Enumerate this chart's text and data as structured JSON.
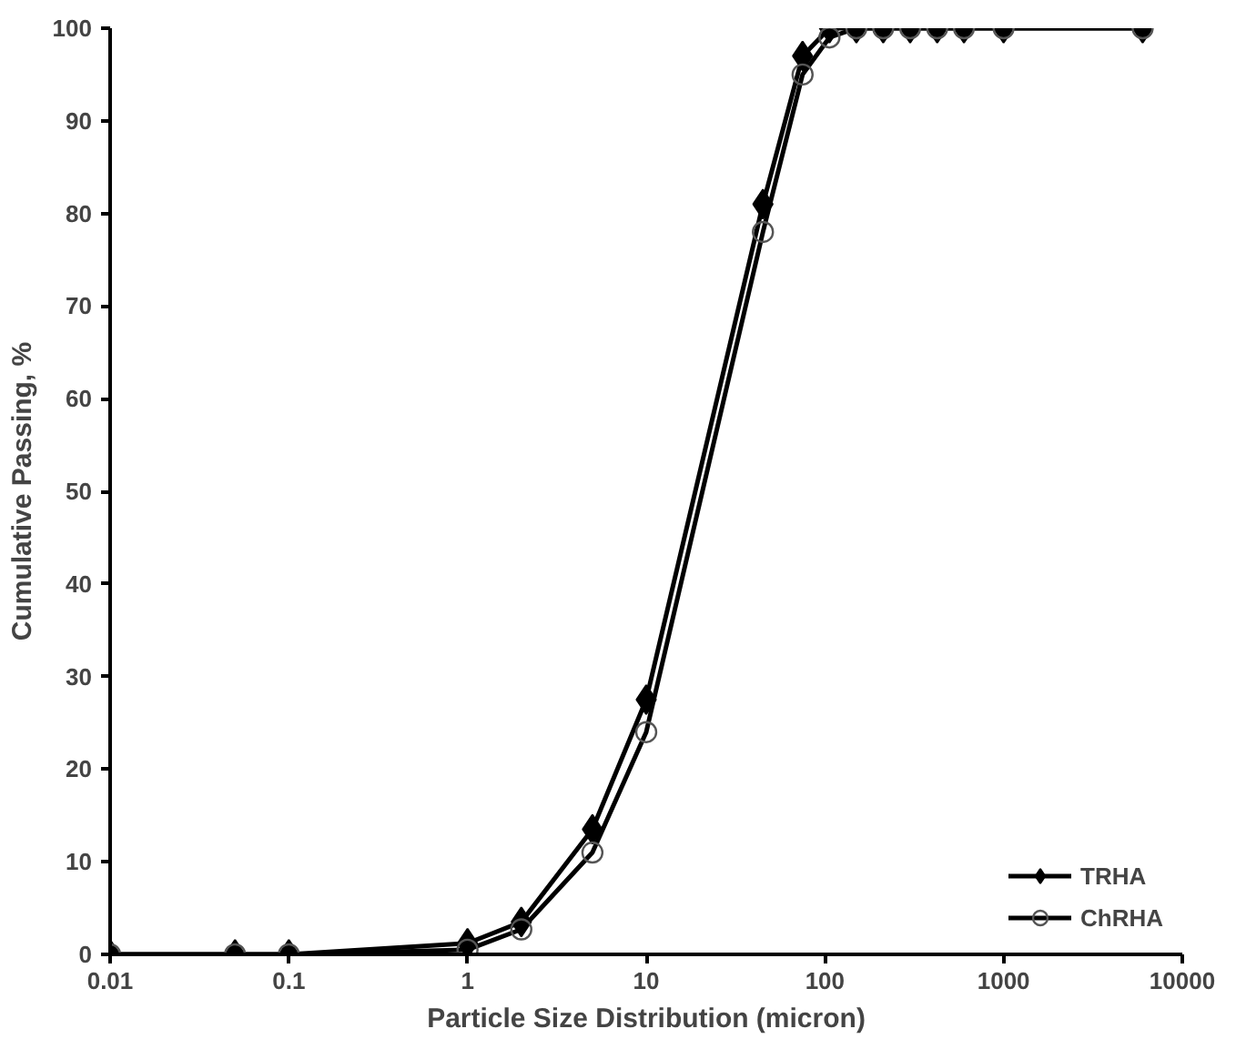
{
  "chart_data": {
    "type": "line",
    "xlabel": "Particle Size Distribution (micron)",
    "ylabel": "Cumulative Passing, %",
    "log": "x",
    "xlim": [
      0.01,
      10000
    ],
    "xticks": [
      0.01,
      0.1,
      1,
      10,
      100,
      1000,
      10000
    ],
    "ylim": [
      0,
      100
    ],
    "yticks": [
      0,
      10,
      20,
      30,
      40,
      50,
      60,
      70,
      80,
      90,
      100
    ],
    "grid": false,
    "legend": "bottom right",
    "series": [
      {
        "name": "TRHA",
        "color": "#000000",
        "marker": "diamond",
        "x": [
          0.01,
          0.05,
          0.1,
          1,
          2,
          5,
          10,
          45,
          75,
          106,
          150,
          212,
          300,
          425,
          600,
          1000,
          6000
        ],
        "values": [
          0,
          0,
          0,
          1.2,
          3.5,
          13.5,
          27.5,
          81,
          97,
          100,
          100,
          100,
          100,
          100,
          100,
          100,
          100
        ]
      },
      {
        "name": "ChRHA",
        "color": "#000000",
        "marker": "circle",
        "x": [
          0.01,
          0.05,
          0.1,
          1,
          2,
          5,
          10,
          45,
          75,
          106,
          150,
          212,
          300,
          425,
          600,
          1000,
          6000
        ],
        "values": [
          0,
          0,
          0,
          0.5,
          2.7,
          11,
          24,
          78,
          95,
          99,
          100,
          100,
          100,
          100,
          100,
          100,
          100
        ]
      }
    ]
  }
}
